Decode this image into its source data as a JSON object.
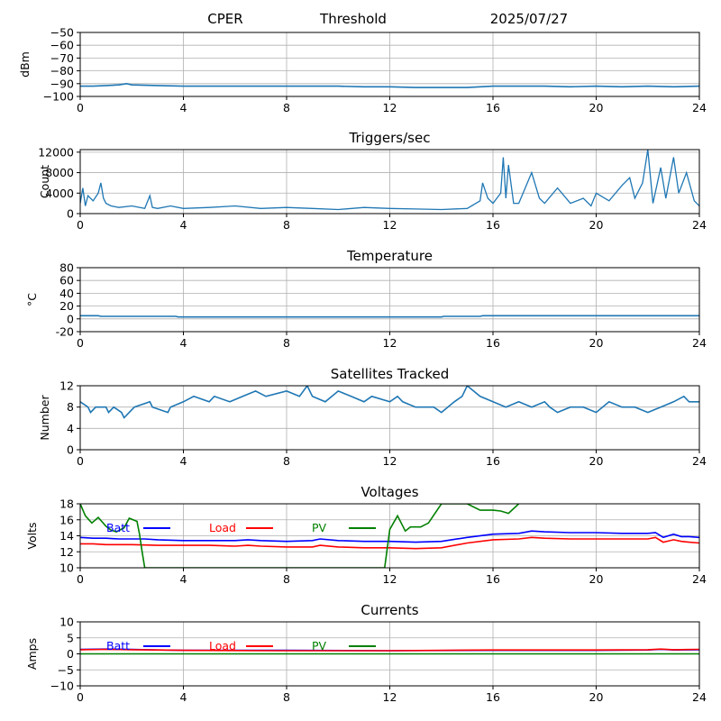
{
  "header": {
    "station": "CPER",
    "mode": "Threshold",
    "date": "2025/07/27"
  },
  "colors": {
    "series_default": "#1f77b4",
    "batt": "#0000ff",
    "load": "#ff0000",
    "pv": "#008000",
    "grid": "#b0b0b0",
    "axis": "#000000"
  },
  "chart_data": [
    {
      "type": "line",
      "id": "signal",
      "title": "",
      "ylabel": "dBm",
      "xlim": [
        0,
        24
      ],
      "ylim": [
        -100,
        -50
      ],
      "xticks": [
        0,
        4,
        8,
        12,
        16,
        20,
        24
      ],
      "yticks": [
        -100,
        -90,
        -80,
        -70,
        -60,
        -50
      ],
      "ytick_labels": [
        "−100",
        "−90",
        "−80",
        "−70",
        "−60",
        "−50"
      ],
      "grid": true,
      "series": [
        {
          "x": [
            0,
            0.5,
            1,
            1.5,
            1.8,
            2,
            3,
            4,
            6,
            8,
            10,
            11,
            12,
            13,
            14,
            15,
            16,
            17,
            18,
            19,
            20,
            21,
            22,
            23,
            24
          ],
          "y": [
            -92,
            -92,
            -91.5,
            -91,
            -90,
            -91,
            -91.5,
            -92,
            -92,
            -92,
            -92,
            -92.5,
            -92.5,
            -93,
            -93,
            -93,
            -92,
            -92,
            -92,
            -92.5,
            -92,
            -92.5,
            -92,
            -92.5,
            -92
          ]
        }
      ]
    },
    {
      "type": "line",
      "id": "triggers",
      "title": "Triggers/sec",
      "ylabel": "Count",
      "xlim": [
        0,
        24
      ],
      "ylim": [
        0,
        12500
      ],
      "xticks": [
        0,
        4,
        8,
        12,
        16,
        20,
        24
      ],
      "yticks": [
        0,
        4000,
        8000,
        12000
      ],
      "grid": true,
      "series": [
        {
          "x": [
            0,
            0.1,
            0.2,
            0.3,
            0.5,
            0.7,
            0.8,
            0.9,
            1.0,
            1.2,
            1.5,
            2.0,
            2.5,
            2.7,
            2.8,
            3.0,
            3.5,
            4.0,
            5.0,
            6.0,
            7.0,
            8.0,
            9.0,
            10.0,
            11.0,
            12.0,
            13.0,
            14.0,
            15.0,
            15.5,
            15.6,
            15.8,
            16.0,
            16.3,
            16.4,
            16.5,
            16.6,
            16.8,
            17.0,
            17.5,
            17.8,
            18.0,
            18.5,
            19.0,
            19.5,
            19.8,
            20.0,
            20.5,
            21.0,
            21.3,
            21.5,
            21.8,
            22.0,
            22.2,
            22.5,
            22.7,
            23.0,
            23.2,
            23.5,
            23.8,
            24.0
          ],
          "y": [
            2000,
            5000,
            1500,
            3500,
            2500,
            4000,
            6000,
            3000,
            2000,
            1500,
            1200,
            1500,
            1000,
            3500,
            1200,
            1000,
            1500,
            1000,
            1200,
            1500,
            1000,
            1200,
            1000,
            800,
            1200,
            1000,
            900,
            800,
            1000,
            2500,
            6000,
            3000,
            2000,
            4000,
            11000,
            3000,
            9500,
            2000,
            2000,
            8000,
            3000,
            2000,
            5000,
            2000,
            3000,
            1500,
            4000,
            2500,
            5500,
            7000,
            3000,
            6000,
            12500,
            2000,
            9000,
            3000,
            11000,
            4000,
            8000,
            2500,
            1500
          ]
        }
      ]
    },
    {
      "type": "line",
      "id": "temperature",
      "title": "Temperature",
      "ylabel": "°C",
      "xlim": [
        0,
        24
      ],
      "ylim": [
        -20,
        80
      ],
      "xticks": [
        0,
        4,
        8,
        12,
        16,
        20,
        24
      ],
      "yticks": [
        -20,
        0,
        20,
        40,
        60,
        80
      ],
      "grid": true,
      "series": [
        {
          "x": [
            0,
            0.7,
            0.8,
            3.7,
            3.8,
            14,
            14.1,
            15.5,
            15.6,
            24
          ],
          "y": [
            5,
            5,
            4,
            4,
            3,
            3,
            4,
            4,
            5,
            5
          ]
        }
      ]
    },
    {
      "type": "line",
      "id": "satellites",
      "title": "Satellites Tracked",
      "ylabel": "Number",
      "xlim": [
        0,
        24
      ],
      "ylim": [
        0,
        12
      ],
      "xticks": [
        0,
        4,
        8,
        12,
        16,
        20,
        24
      ],
      "yticks": [
        0,
        4,
        8,
        12
      ],
      "grid": true,
      "series": [
        {
          "x": [
            0,
            0.3,
            0.4,
            0.6,
            1.0,
            1.1,
            1.3,
            1.6,
            1.7,
            1.9,
            2.1,
            2.7,
            2.8,
            3.4,
            3.5,
            4.0,
            4.4,
            5.0,
            5.2,
            5.8,
            6.3,
            6.8,
            7.2,
            8.0,
            8.5,
            8.8,
            9.0,
            9.5,
            10.0,
            10.5,
            11.0,
            11.3,
            12.0,
            12.3,
            12.5,
            13.0,
            13.7,
            14.0,
            14.5,
            14.8,
            15.0,
            15.5,
            16.0,
            16.5,
            17.0,
            17.5,
            18.0,
            18.2,
            18.5,
            19.0,
            19.5,
            20.0,
            20.5,
            21.0,
            21.5,
            22.0,
            22.5,
            23.0,
            23.4,
            23.6,
            24.0
          ],
          "y": [
            9,
            8,
            7,
            8,
            8,
            7,
            8,
            7,
            6,
            7,
            8,
            9,
            8,
            7,
            8,
            9,
            10,
            9,
            10,
            9,
            10,
            11,
            10,
            11,
            10,
            12,
            10,
            9,
            11,
            10,
            9,
            10,
            9,
            10,
            9,
            8,
            8,
            7,
            9,
            10,
            12,
            10,
            9,
            8,
            9,
            8,
            9,
            8,
            7,
            8,
            8,
            7,
            9,
            8,
            8,
            7,
            8,
            9,
            10,
            9,
            9
          ]
        }
      ]
    },
    {
      "type": "line",
      "id": "voltages",
      "title": "Voltages",
      "ylabel": "Volts",
      "xlim": [
        0,
        24
      ],
      "ylim": [
        10,
        18
      ],
      "xticks": [
        0,
        4,
        8,
        12,
        16,
        20,
        24
      ],
      "yticks": [
        10,
        12,
        14,
        16,
        18
      ],
      "grid": true,
      "legend": [
        "Batt",
        "Load",
        "PV"
      ],
      "legend_position": "top-left inline",
      "series": [
        {
          "name": "Batt",
          "color": "#0000ff",
          "x": [
            0,
            0.5,
            1,
            1.5,
            2,
            2.5,
            3,
            4,
            5,
            6,
            6.5,
            7,
            8,
            9,
            9.3,
            10,
            11,
            12,
            13,
            14,
            15,
            16,
            17,
            17.5,
            18,
            19,
            20,
            21,
            22,
            22.3,
            22.6,
            23,
            23.3,
            23.6,
            24
          ],
          "y": [
            13.8,
            13.7,
            13.7,
            13.6,
            13.6,
            13.6,
            13.5,
            13.4,
            13.4,
            13.4,
            13.5,
            13.4,
            13.3,
            13.4,
            13.6,
            13.4,
            13.3,
            13.3,
            13.2,
            13.3,
            13.8,
            14.2,
            14.3,
            14.6,
            14.5,
            14.4,
            14.4,
            14.3,
            14.3,
            14.4,
            13.8,
            14.2,
            13.9,
            13.9,
            13.8
          ]
        },
        {
          "name": "Load",
          "color": "#ff0000",
          "x": [
            0,
            0.5,
            1,
            2,
            3,
            4,
            5,
            6,
            6.5,
            7,
            8,
            9,
            9.3,
            10,
            11,
            12,
            13,
            14,
            15,
            16,
            17,
            17.5,
            18,
            19,
            20,
            21,
            22,
            22.3,
            22.6,
            23,
            23.3,
            23.6,
            24
          ],
          "y": [
            13.0,
            13.0,
            12.9,
            12.9,
            12.8,
            12.8,
            12.8,
            12.7,
            12.8,
            12.7,
            12.6,
            12.6,
            12.8,
            12.6,
            12.5,
            12.5,
            12.4,
            12.5,
            13.1,
            13.5,
            13.6,
            13.8,
            13.7,
            13.6,
            13.6,
            13.6,
            13.6,
            13.8,
            13.2,
            13.5,
            13.3,
            13.2,
            13.1
          ]
        },
        {
          "name": "PV",
          "color": "#008000",
          "x": [
            0,
            0.2,
            0.45,
            0.7,
            1.0,
            1.2,
            1.4,
            1.7,
            1.9,
            2.2,
            2.3,
            2.4,
            2.5,
            11.8,
            12.0,
            12.3,
            12.6,
            12.8,
            13.2,
            13.5,
            14.0,
            14.5,
            15.0,
            15.5,
            16.0,
            16.3,
            16.6,
            17.0
          ],
          "y": [
            18,
            16.5,
            15.6,
            16.3,
            15.2,
            14.7,
            14.5,
            15.0,
            16.2,
            15.8,
            14.2,
            12.0,
            10.0,
            10.0,
            14.8,
            16.5,
            14.6,
            15.1,
            15.1,
            15.6,
            18,
            18,
            18,
            17.2,
            17.2,
            17.1,
            16.8,
            18
          ]
        }
      ]
    },
    {
      "type": "line",
      "id": "currents",
      "title": "Currents",
      "ylabel": "Amps",
      "xlim": [
        0,
        24
      ],
      "ylim": [
        -10,
        10
      ],
      "xticks": [
        0,
        4,
        8,
        12,
        16,
        20,
        24
      ],
      "yticks": [
        -10,
        -5,
        0,
        5,
        10
      ],
      "ytick_labels": [
        "−10",
        "−5",
        "0",
        "5",
        "10"
      ],
      "grid": true,
      "legend": [
        "Batt",
        "Load",
        "PV"
      ],
      "legend_position": "top-left inline",
      "series": [
        {
          "name": "Batt",
          "color": "#0000ff",
          "x": [
            0,
            1,
            2,
            3,
            4,
            8,
            12,
            16,
            20,
            22,
            22.5,
            23,
            24
          ],
          "y": [
            1.4,
            1.5,
            1.4,
            1.2,
            1.1,
            1.1,
            1.0,
            1.1,
            1.1,
            1.2,
            1.4,
            1.2,
            1.3
          ]
        },
        {
          "name": "Load",
          "color": "#ff0000",
          "x": [
            0,
            1,
            2,
            3,
            4,
            8,
            12,
            16,
            20,
            22,
            22.5,
            23,
            24
          ],
          "y": [
            1.3,
            1.4,
            1.3,
            1.2,
            1.1,
            1.0,
            1.0,
            1.2,
            1.2,
            1.3,
            1.5,
            1.3,
            1.4
          ]
        },
        {
          "name": "PV",
          "color": "#008000",
          "x": [
            0,
            24
          ],
          "y": [
            0,
            0
          ]
        }
      ]
    }
  ]
}
